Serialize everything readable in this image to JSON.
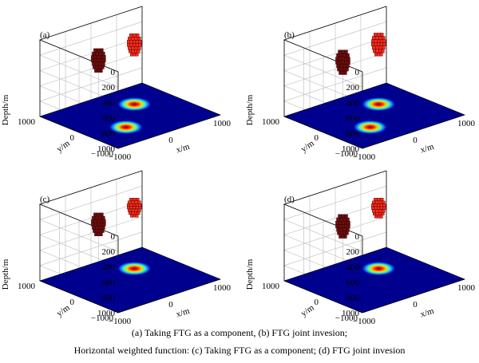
{
  "chart_data": [
    {
      "type": "3d-voxel-with-surface",
      "panel_label": "(a)",
      "zlabel": "Depth/m",
      "ylabel": "y/m",
      "xlabel": "x/m",
      "zticks": [
        "0",
        "200",
        "400",
        "600",
        "800",
        "1000"
      ],
      "yticks": [
        "1000",
        "0",
        "−1000"
      ],
      "xticks": [
        "−1000",
        "0",
        "1000"
      ],
      "zlim": [
        0,
        1000
      ],
      "ylim": [
        -1000,
        1000
      ],
      "xlim": [
        -1000,
        1000
      ],
      "grid": true,
      "bodies": [
        {
          "color": "#6b0d0d",
          "x": -350,
          "y": 350,
          "top_depth": 120,
          "bottom_depth": 430
        },
        {
          "color": "#ff2a1a",
          "x": 350,
          "y": 350,
          "top_depth": 80,
          "bottom_depth": 370
        }
      ],
      "surface_anomalies": [
        {
          "x": -350,
          "y": -350,
          "size": 1.0
        },
        {
          "x": 350,
          "y": 350,
          "size": 1.0
        }
      ]
    },
    {
      "type": "3d-voxel-with-surface",
      "panel_label": "(b)",
      "zlabel": "Depth/m",
      "ylabel": "y/m",
      "xlabel": "x/m",
      "zticks": [
        "0",
        "200",
        "400",
        "600",
        "800",
        "1000"
      ],
      "yticks": [
        "1000",
        "0",
        "−1000"
      ],
      "xticks": [
        "−1000",
        "0",
        "1000"
      ],
      "zlim": [
        0,
        1000
      ],
      "ylim": [
        -1000,
        1000
      ],
      "xlim": [
        -1000,
        1000
      ],
      "grid": true,
      "bodies": [
        {
          "color": "#6b0d0d",
          "x": -350,
          "y": 350,
          "top_depth": 140,
          "bottom_depth": 460
        },
        {
          "color": "#ff2a1a",
          "x": 350,
          "y": 350,
          "top_depth": 70,
          "bottom_depth": 370
        }
      ],
      "surface_anomalies": [
        {
          "x": -350,
          "y": -350,
          "size": 1.0
        },
        {
          "x": 350,
          "y": 350,
          "size": 1.0
        }
      ]
    },
    {
      "type": "3d-voxel-with-surface",
      "panel_label": "(c)",
      "zlabel": "Depth/m",
      "ylabel": "y/m",
      "xlabel": "x/m",
      "zticks": [
        "0",
        "200",
        "400",
        "600",
        "800",
        "1000"
      ],
      "yticks": [
        "1000",
        "0",
        "−1000"
      ],
      "xticks": [
        "−1000",
        "0",
        "1000"
      ],
      "zlim": [
        0,
        1000
      ],
      "ylim": [
        -1000,
        1000
      ],
      "xlim": [
        -1000,
        1000
      ],
      "grid": true,
      "bodies": [
        {
          "color": "#6b0d0d",
          "x": -350,
          "y": 350,
          "top_depth": 120,
          "bottom_depth": 420
        },
        {
          "color": "#ff2a1a",
          "x": 350,
          "y": 350,
          "top_depth": 80,
          "bottom_depth": 330
        }
      ],
      "surface_anomalies": [
        {
          "x": 350,
          "y": 350,
          "size": 1.0
        }
      ]
    },
    {
      "type": "3d-voxel-with-surface",
      "panel_label": "(d)",
      "zlabel": "Depth/m",
      "ylabel": "y/m",
      "xlabel": "x/m",
      "zticks": [
        "0",
        "200",
        "400",
        "600",
        "800",
        "1000"
      ],
      "yticks": [
        "1000",
        "0",
        "−1000"
      ],
      "xticks": [
        "−1000",
        "0",
        "1000"
      ],
      "zlim": [
        0,
        1000
      ],
      "ylim": [
        -1000,
        1000
      ],
      "xlim": [
        -1000,
        1000
      ],
      "grid": true,
      "bodies": [
        {
          "color": "#6b0d0d",
          "x": -350,
          "y": 350,
          "top_depth": 140,
          "bottom_depth": 450
        },
        {
          "color": "#ff2a1a",
          "x": 350,
          "y": 350,
          "top_depth": 80,
          "bottom_depth": 340
        }
      ],
      "surface_anomalies": [
        {
          "x": 350,
          "y": 350,
          "size": 1.0
        }
      ]
    }
  ],
  "colors": {
    "background_plane": "#00008f",
    "grid": "#bbbbbb",
    "box": "#000000"
  },
  "caption": {
    "line1": "(a) Taking FTG as a component, (b) FTG joint invesion;",
    "line2": "Horizontal weighted function: (c) Taking FTG as a component; (d) FTG joint invesion"
  }
}
